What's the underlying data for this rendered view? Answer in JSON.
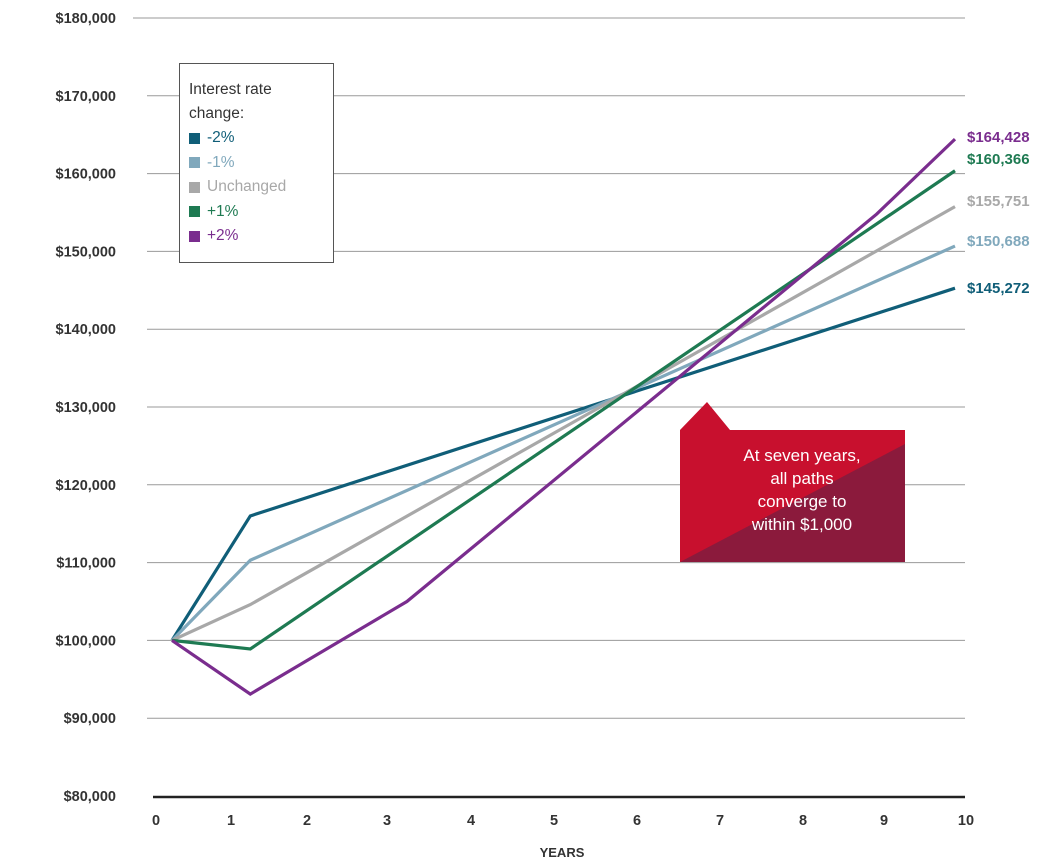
{
  "chart_data": {
    "type": "line",
    "xlabel": "YEARS",
    "ylabel": "",
    "x_ticks": [
      "0",
      "1",
      "2",
      "3",
      "4",
      "5",
      "6",
      "7",
      "8",
      "9",
      "10"
    ],
    "y_ticks": [
      "$80,000",
      "$90,000",
      "$100,000",
      "$110,000",
      "$120,000",
      "$130,000",
      "$140,000",
      "$150,000",
      "$160,000",
      "$170,000",
      "$180,000"
    ],
    "xlim": [
      0,
      10
    ],
    "ylim": [
      80000,
      180000
    ],
    "grid": "horizontal",
    "legend": {
      "title": "Interest rate change:",
      "placement": "top-left"
    },
    "series": [
      {
        "name": "-2%",
        "color": "#105e78",
        "x": [
          0,
          1,
          10
        ],
        "y": [
          100000,
          116000,
          145272
        ],
        "end_label": "$145,272"
      },
      {
        "name": "-1%",
        "color": "#80a8bc",
        "x": [
          0,
          1,
          10
        ],
        "y": [
          100000,
          110300,
          150688
        ],
        "end_label": "$150,688"
      },
      {
        "name": "Unchanged",
        "color": "#a8a8a8",
        "x": [
          0,
          1,
          10
        ],
        "y": [
          100000,
          104600,
          155751
        ],
        "end_label": "$155,751"
      },
      {
        "name": "+1%",
        "color": "#1e7a52",
        "x": [
          0,
          1,
          10
        ],
        "y": [
          100000,
          98900,
          160366
        ],
        "end_label": "$160,366"
      },
      {
        "name": "+2%",
        "color": "#7a2d8e",
        "x": [
          0,
          1,
          3,
          9,
          10
        ],
        "y": [
          100000,
          93100,
          105000,
          154800,
          164428
        ],
        "end_label": "$164,428"
      }
    ],
    "annotation": {
      "text": "At seven years, all paths converge to within $1,000",
      "lines": [
        "At seven years,",
        "all paths",
        "converge to",
        "within $1,000"
      ],
      "x": 7,
      "color": "#c8102e",
      "shade_color": "#8b1a3c"
    }
  }
}
